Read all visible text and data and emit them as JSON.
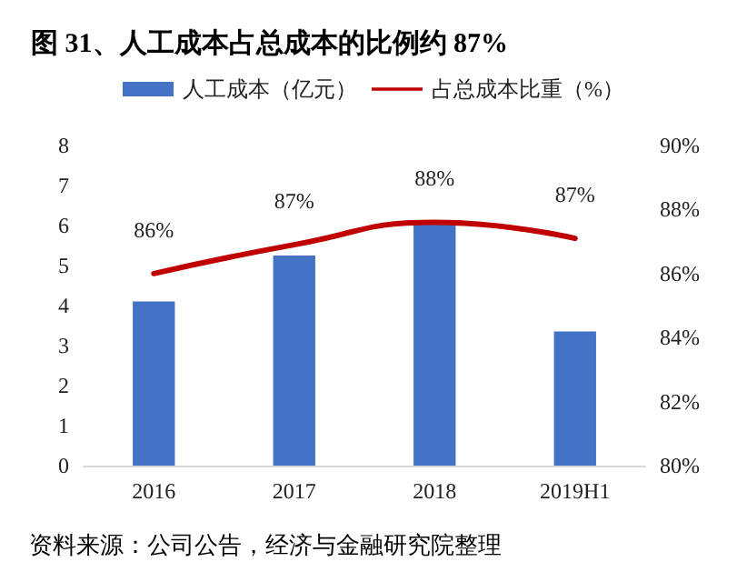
{
  "chart_data": {
    "type": "bar",
    "title": "图 31、人工成本占总成本的比例约 87%",
    "categories": [
      "2016",
      "2017",
      "2018",
      "2019H1"
    ],
    "series": [
      {
        "name": "人工成本（亿元）",
        "color": "#4472c4",
        "values": [
          4.1,
          5.25,
          6.05,
          3.35
        ]
      },
      {
        "name": "占总成本比重（%）",
        "type": "line",
        "axis": "y2",
        "color": "#c00000",
        "values": [
          86.0,
          86.9,
          87.6,
          87.1
        ],
        "value_labels": [
          "86%",
          "87%",
          "88%",
          "87%"
        ]
      }
    ],
    "ylim": [
      0,
      8
    ],
    "yticks": [
      0,
      1,
      2,
      3,
      4,
      5,
      6,
      7,
      8
    ],
    "y2lim": [
      80,
      90
    ],
    "y2ticks": [
      {
        "value": 80,
        "label": "80%"
      },
      {
        "value": 82,
        "label": "82%"
      },
      {
        "value": 84,
        "label": "84%"
      },
      {
        "value": 86,
        "label": "86%"
      },
      {
        "value": 88,
        "label": "88%"
      },
      {
        "value": 90,
        "label": "90%"
      }
    ],
    "grid": false,
    "legend": "top",
    "marker": "none",
    "annotations": [
      "资料来源：公司公告，经济与金融研究院整理"
    ]
  }
}
